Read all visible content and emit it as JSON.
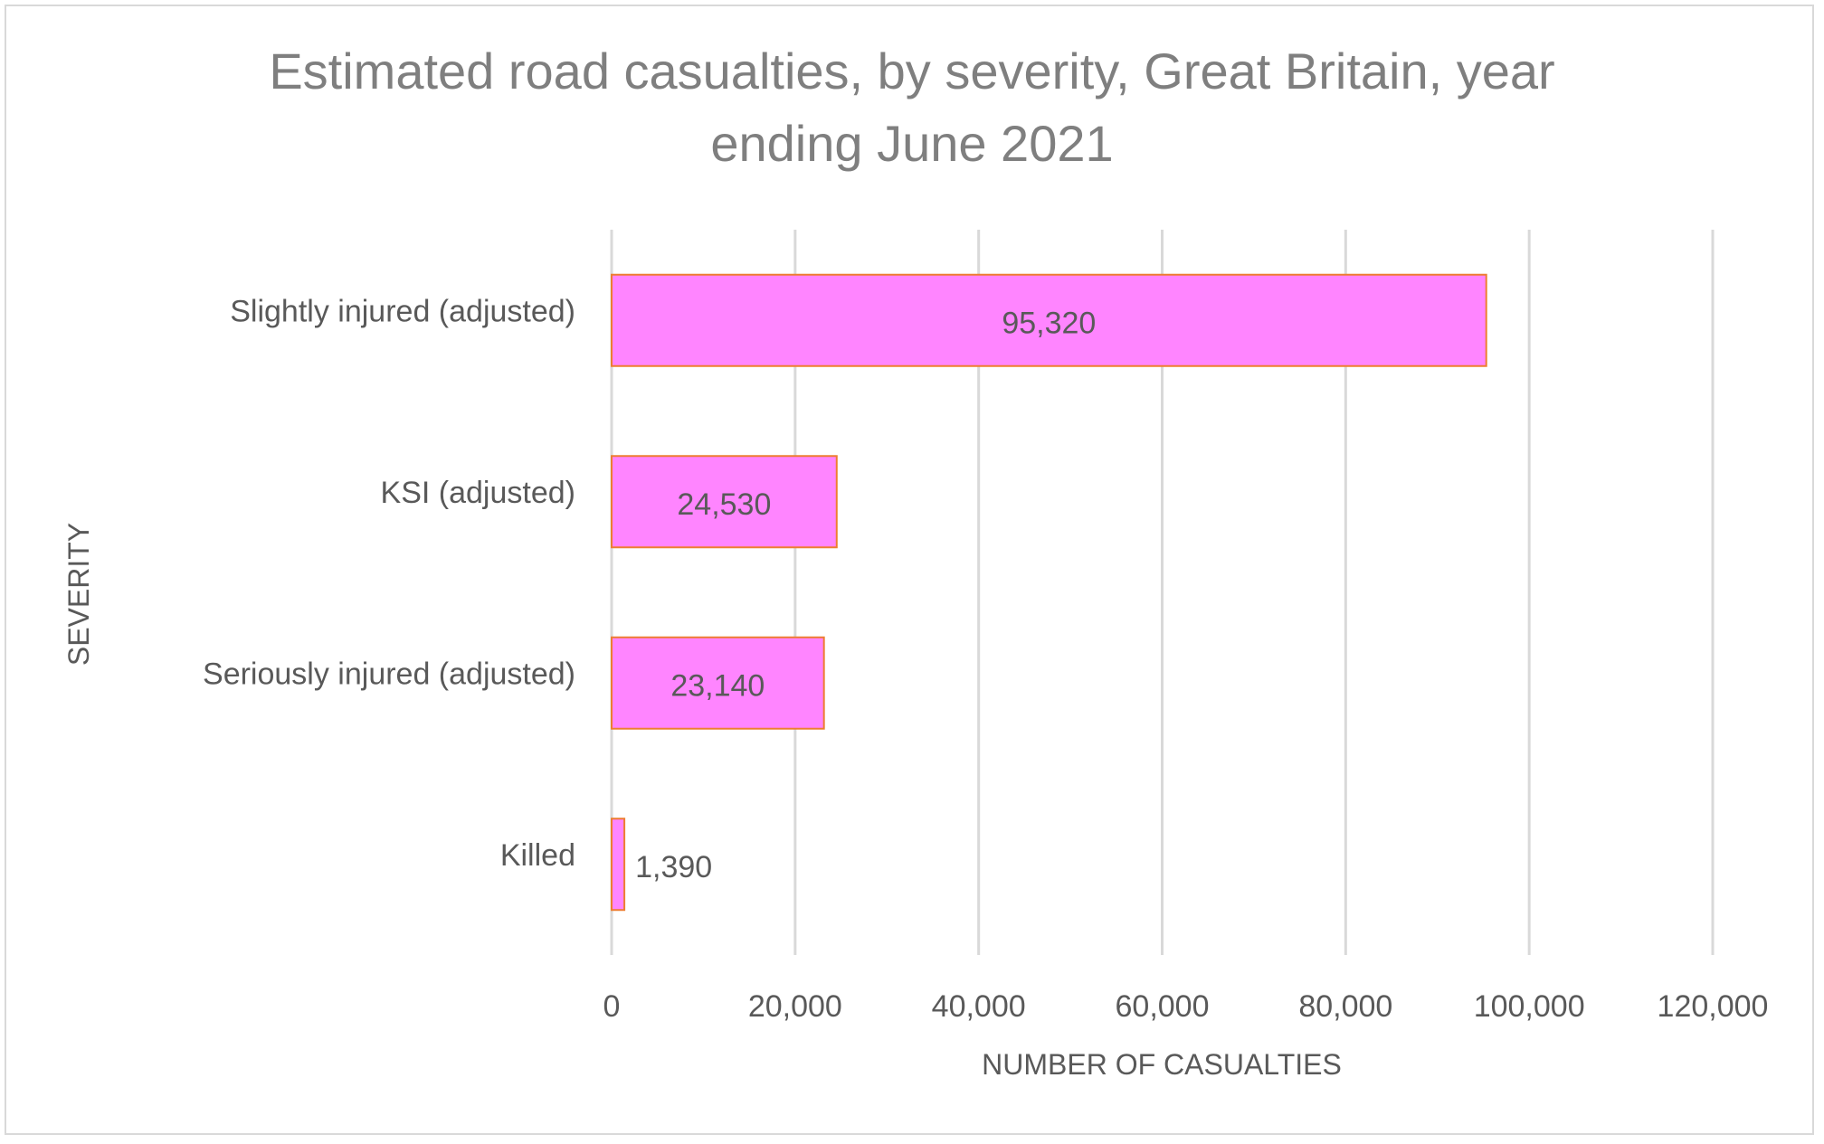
{
  "chart_data": {
    "type": "bar",
    "orientation": "horizontal",
    "title": "Estimated road casualties, by severity, Great Britain, year ending June 2021",
    "title_lines": [
      "Estimated road casualties, by severity, Great Britain, year",
      "ending June 2021"
    ],
    "categories": [
      "Slightly injured (adjusted)",
      "KSI (adjusted)",
      "Seriously injured (adjusted)",
      "Killed"
    ],
    "values": [
      95320,
      24530,
      23140,
      1390
    ],
    "data_labels": [
      "95,320",
      "24,530",
      "23,140",
      "1,390"
    ],
    "xlabel": "NUMBER OF CASUALTIES",
    "ylabel": "SEVERITY",
    "xlim": [
      0,
      120000
    ],
    "xticks": [
      0,
      20000,
      40000,
      60000,
      80000,
      100000,
      120000
    ],
    "xtick_labels": [
      "0",
      "20,000",
      "40,000",
      "60,000",
      "80,000",
      "100,000",
      "120,000"
    ],
    "grid": "vertical",
    "legend": "none",
    "colors": {
      "bar_fill": "#ff85ff",
      "bar_stroke": "#ed7d31",
      "gridline": "#d9d9d9",
      "text": "#595959",
      "title": "#7f7f7f"
    }
  }
}
